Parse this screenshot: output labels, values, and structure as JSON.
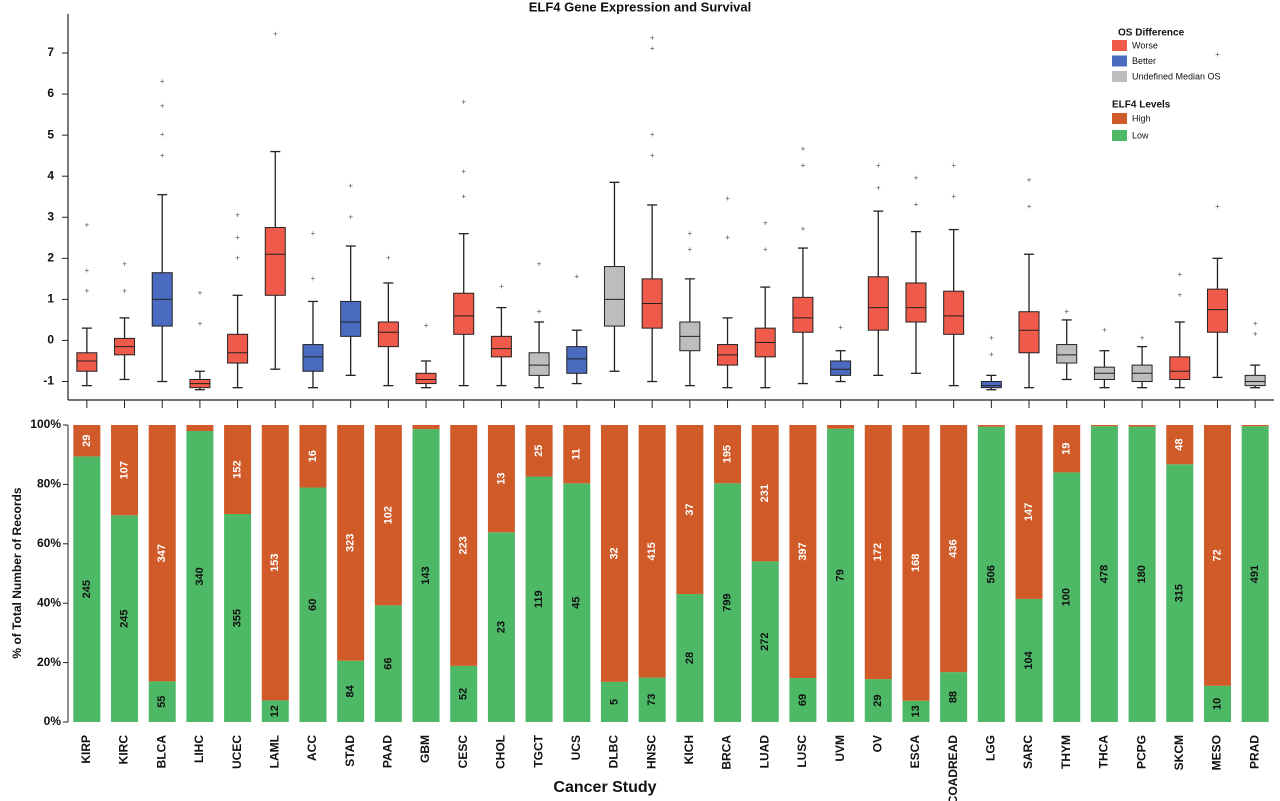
{
  "chart_data": [
    {
      "type": "box",
      "title": "ELF4 Gene Expression and Survival",
      "ylim": [
        -1.45,
        7.95
      ],
      "yticks": [
        -1,
        0,
        1,
        2,
        3,
        4,
        5,
        6,
        7
      ],
      "legend_title": "OS Difference",
      "os_groups": [
        {
          "name": "Worse",
          "color": "#f05a4a"
        },
        {
          "name": "Better",
          "color": "#4a6bbf"
        },
        {
          "name": "Undefined Median OS",
          "color": "#bdbdbd"
        }
      ],
      "os": [
        "Worse",
        "Worse",
        "Better",
        "Worse",
        "Worse",
        "Worse",
        "Better",
        "Better",
        "Worse",
        "Worse",
        "Worse",
        "Worse",
        "Undefined Median OS",
        "Better",
        "Undefined Median OS",
        "Worse",
        "Undefined Median OS",
        "Worse",
        "Worse",
        "Worse",
        "Better",
        "Worse",
        "Worse",
        "Worse",
        "Better",
        "Worse",
        "Undefined Median OS",
        "Undefined Median OS",
        "Undefined Median OS",
        "Worse",
        "Worse",
        "Undefined Median OS"
      ],
      "stats": [
        [
          -1.1,
          -0.75,
          -0.5,
          -0.3,
          0.3
        ],
        [
          -0.95,
          -0.35,
          -0.15,
          0.05,
          0.55
        ],
        [
          -1.0,
          0.35,
          1.0,
          1.65,
          3.55
        ],
        [
          -1.2,
          -1.15,
          -1.05,
          -0.95,
          -0.75
        ],
        [
          -1.15,
          -0.55,
          -0.3,
          0.15,
          1.1
        ],
        [
          -0.7,
          1.1,
          2.1,
          2.75,
          4.6
        ],
        [
          -1.15,
          -0.75,
          -0.4,
          -0.1,
          0.95
        ],
        [
          -0.85,
          0.1,
          0.45,
          0.95,
          2.3
        ],
        [
          -1.1,
          -0.15,
          0.2,
          0.45,
          1.4
        ],
        [
          -1.15,
          -1.05,
          -0.95,
          -0.8,
          -0.5
        ],
        [
          -1.1,
          0.15,
          0.6,
          1.15,
          2.6
        ],
        [
          -1.1,
          -0.4,
          -0.2,
          0.1,
          0.8
        ],
        [
          -1.15,
          -0.85,
          -0.6,
          -0.3,
          0.45
        ],
        [
          -1.05,
          -0.8,
          -0.45,
          -0.15,
          0.25
        ],
        [
          -0.75,
          0.35,
          1.0,
          1.8,
          3.85
        ],
        [
          -1.0,
          0.3,
          0.9,
          1.5,
          3.3
        ],
        [
          -1.1,
          -0.25,
          0.1,
          0.45,
          1.5
        ],
        [
          -1.15,
          -0.6,
          -0.35,
          -0.1,
          0.55
        ],
        [
          -1.15,
          -0.4,
          -0.05,
          0.3,
          1.3
        ],
        [
          -1.05,
          0.2,
          0.55,
          1.05,
          2.25
        ],
        [
          -1.0,
          -0.85,
          -0.7,
          -0.5,
          -0.25
        ],
        [
          -0.85,
          0.25,
          0.8,
          1.55,
          3.15
        ],
        [
          -0.8,
          0.45,
          0.8,
          1.4,
          2.65
        ],
        [
          -1.1,
          0.15,
          0.6,
          1.2,
          2.7
        ],
        [
          -1.2,
          -1.15,
          -1.1,
          -1.0,
          -0.85
        ],
        [
          -1.15,
          -0.3,
          0.25,
          0.7,
          2.1
        ],
        [
          -0.95,
          -0.55,
          -0.35,
          -0.1,
          0.5
        ],
        [
          -1.15,
          -0.95,
          -0.8,
          -0.65,
          -0.25
        ],
        [
          -1.15,
          -1.0,
          -0.8,
          -0.6,
          -0.15
        ],
        [
          -1.15,
          -0.95,
          -0.75,
          -0.4,
          0.45
        ],
        [
          -0.9,
          0.2,
          0.75,
          1.25,
          2.0
        ],
        [
          -1.15,
          -1.1,
          -1.0,
          -0.85,
          -0.6
        ]
      ],
      "outliers": [
        [
          1.2,
          1.7,
          2.8
        ],
        [
          1.2,
          1.85
        ],
        [
          4.5,
          5.0,
          5.7,
          6.3
        ],
        [
          0.4,
          1.15
        ],
        [
          2.0,
          2.5,
          3.05
        ],
        [
          7.45
        ],
        [
          1.5,
          2.6
        ],
        [
          3.0,
          3.75
        ],
        [
          2.0
        ],
        [
          0.35
        ],
        [
          3.5,
          4.1,
          5.8
        ],
        [
          1.3
        ],
        [
          0.7,
          1.85
        ],
        [
          1.55
        ],
        [],
        [
          4.5,
          5.0,
          7.1,
          7.35
        ],
        [
          2.2,
          2.6
        ],
        [
          2.5,
          3.45
        ],
        [
          2.2,
          2.85
        ],
        [
          2.7,
          4.25,
          4.65
        ],
        [
          0.3
        ],
        [
          3.7,
          4.25
        ],
        [
          3.3,
          3.95
        ],
        [
          3.5,
          4.25
        ],
        [
          -0.35,
          0.05
        ],
        [
          3.25,
          3.9
        ],
        [
          0.7
        ],
        [
          0.25
        ],
        [
          0.05
        ],
        [
          1.1,
          1.6
        ],
        [
          3.25,
          6.95
        ],
        [
          0.15,
          0.4
        ]
      ]
    },
    {
      "type": "bar",
      "stacked": "percent",
      "xlabel": "Cancer Study",
      "ylabel": "% of Total Number of Records",
      "categories": [
        "KIRP",
        "KIRC",
        "BLCA",
        "LIHC",
        "UCEC",
        "LAML",
        "ACC",
        "STAD",
        "PAAD",
        "GBM",
        "CESC",
        "CHOL",
        "TGCT",
        "UCS",
        "DLBC",
        "HNSC",
        "KICH",
        "BRCA",
        "LUAD",
        "LUSC",
        "UVM",
        "OV",
        "ESCA",
        "COADREAD",
        "LGG",
        "SARC",
        "THYM",
        "THCA",
        "PCPG",
        "SKCM",
        "MESO",
        "PRAD"
      ],
      "legend_title": "ELF4 Levels",
      "series": [
        {
          "name": "Low",
          "color": "#4db866",
          "values": [
            245,
            245,
            55,
            340,
            355,
            12,
            60,
            84,
            66,
            143,
            52,
            23,
            119,
            45,
            5,
            73,
            28,
            799,
            272,
            69,
            79,
            29,
            13,
            88,
            506,
            104,
            100,
            478,
            180,
            315,
            10,
            491
          ]
        },
        {
          "name": "High",
          "color": "#d05a28",
          "values": [
            29,
            107,
            347,
            7,
            152,
            153,
            16,
            323,
            102,
            2,
            223,
            13,
            25,
            11,
            32,
            415,
            37,
            195,
            231,
            397,
            1,
            172,
            168,
            436,
            3,
            147,
            19,
            2,
            1,
            48,
            72,
            2
          ]
        }
      ],
      "ylim": [
        0,
        100
      ],
      "yticks": [
        {
          "value": 0,
          "label": "0%"
        },
        {
          "value": 20,
          "label": "20%"
        },
        {
          "value": 40,
          "label": "40%"
        },
        {
          "value": 60,
          "label": "60%"
        },
        {
          "value": 80,
          "label": "80%"
        },
        {
          "value": 100,
          "label": "100%"
        }
      ]
    }
  ]
}
